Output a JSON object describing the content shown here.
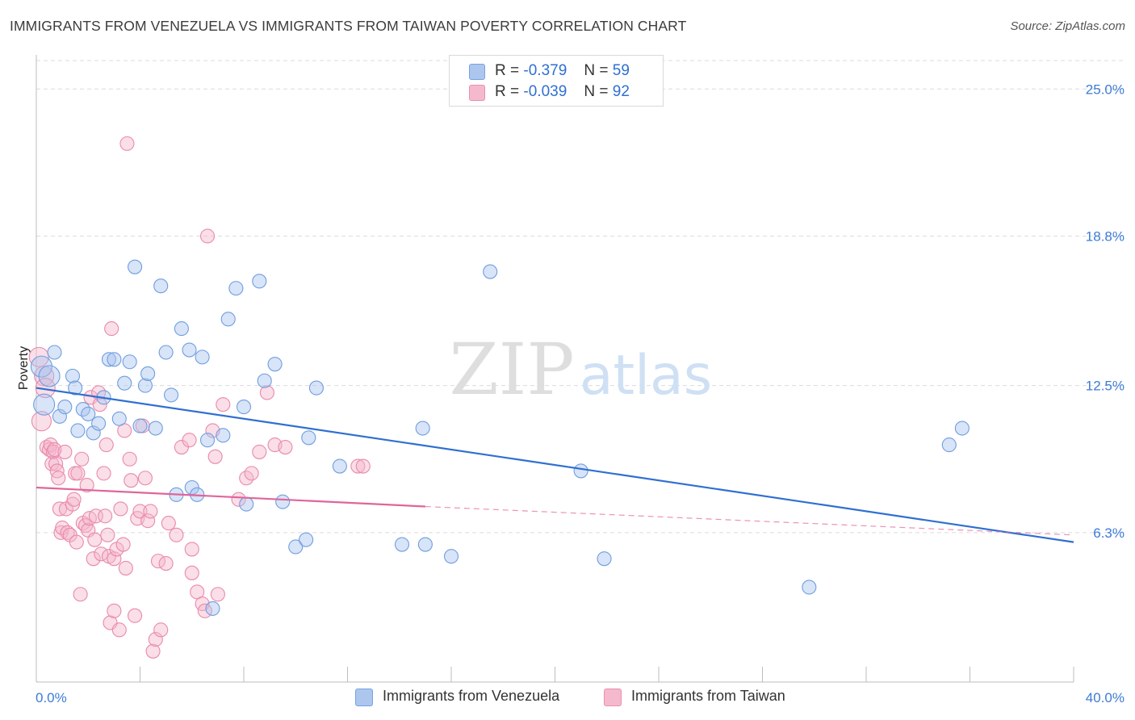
{
  "header": {
    "title": "IMMIGRANTS FROM VENEZUELA VS IMMIGRANTS FROM TAIWAN POVERTY CORRELATION CHART",
    "source": "Source: ZipAtlas.com"
  },
  "watermark": {
    "zip": "ZIP",
    "atlas": "atlas"
  },
  "legend": {
    "venezuela": {
      "r_label": "R =",
      "r_value": "-0.379",
      "n_label": "N =",
      "n_value": "59",
      "color": "#a9c4ee"
    },
    "taiwan": {
      "r_label": "R =",
      "r_value": "-0.039",
      "n_label": "N =",
      "n_value": "92",
      "color": "#f5b6cb"
    }
  },
  "bottom_legend": {
    "venezuela": "Immigrants from Venezuela",
    "taiwan": "Immigrants from Taiwan"
  },
  "chart_data": {
    "type": "scatter",
    "ylabel": "Poverty",
    "xlim": [
      0,
      40
    ],
    "ylim": [
      0,
      26.2
    ],
    "x_tick_labels": {
      "left": "0.0%",
      "right": "40.0%"
    },
    "y_ticks": [
      {
        "value": 6.3,
        "label": "6.3%"
      },
      {
        "value": 12.5,
        "label": "12.5%"
      },
      {
        "value": 18.8,
        "label": "18.8%"
      },
      {
        "value": 25.0,
        "label": "25.0%"
      }
    ],
    "grid": true,
    "series": [
      {
        "name": "Immigrants from Venezuela",
        "color": "#a9c4ee",
        "edge": "#6f9ee0",
        "trend_color": "#2f6fd1",
        "trend": {
          "x0": 0.0,
          "y0": 12.4,
          "x1": 40.0,
          "y1": 5.9
        },
        "points": [
          [
            0.2,
            13.3
          ],
          [
            0.3,
            11.7
          ],
          [
            0.5,
            12.9
          ],
          [
            0.7,
            13.9
          ],
          [
            0.9,
            11.2
          ],
          [
            1.1,
            11.6
          ],
          [
            1.4,
            12.9
          ],
          [
            1.5,
            12.4
          ],
          [
            1.6,
            10.6
          ],
          [
            1.8,
            11.5
          ],
          [
            2.0,
            11.3
          ],
          [
            2.2,
            10.5
          ],
          [
            2.4,
            10.9
          ],
          [
            2.6,
            12.0
          ],
          [
            2.8,
            13.6
          ],
          [
            3.0,
            13.6
          ],
          [
            3.2,
            11.1
          ],
          [
            3.4,
            12.6
          ],
          [
            3.6,
            13.5
          ],
          [
            3.8,
            17.5
          ],
          [
            4.0,
            10.8
          ],
          [
            4.2,
            12.5
          ],
          [
            4.3,
            13.0
          ],
          [
            4.6,
            10.7
          ],
          [
            4.8,
            16.7
          ],
          [
            5.0,
            13.9
          ],
          [
            5.2,
            12.1
          ],
          [
            5.4,
            7.9
          ],
          [
            5.6,
            14.9
          ],
          [
            5.9,
            14.0
          ],
          [
            6.0,
            8.2
          ],
          [
            6.2,
            7.9
          ],
          [
            6.4,
            13.7
          ],
          [
            6.6,
            10.2
          ],
          [
            6.8,
            3.1
          ],
          [
            7.2,
            10.4
          ],
          [
            7.4,
            15.3
          ],
          [
            7.7,
            16.6
          ],
          [
            8.0,
            11.6
          ],
          [
            8.1,
            7.5
          ],
          [
            8.6,
            16.9
          ],
          [
            8.8,
            12.7
          ],
          [
            9.2,
            13.4
          ],
          [
            9.5,
            7.6
          ],
          [
            10.0,
            5.7
          ],
          [
            10.4,
            6.0
          ],
          [
            10.5,
            10.3
          ],
          [
            10.8,
            12.4
          ],
          [
            11.7,
            9.1
          ],
          [
            14.1,
            5.8
          ],
          [
            14.9,
            10.7
          ],
          [
            15.0,
            5.8
          ],
          [
            16.0,
            5.3
          ],
          [
            17.5,
            17.3
          ],
          [
            21.0,
            8.9
          ],
          [
            21.9,
            5.2
          ],
          [
            29.8,
            4.0
          ],
          [
            35.2,
            10.0
          ],
          [
            35.7,
            10.7
          ]
        ]
      },
      {
        "name": "Immigrants from Taiwan",
        "color": "#f5b6cb",
        "edge": "#e98aab",
        "trend_color": "#e0659a",
        "trend": {
          "x0": 0.0,
          "y0": 8.2,
          "x1": 15.0,
          "y1": 7.4
        },
        "trend_dashed": {
          "x0": 15.0,
          "y0": 7.4,
          "x1": 40.0,
          "y1": 6.2
        },
        "points": [
          [
            0.1,
            13.7
          ],
          [
            0.2,
            11.0
          ],
          [
            0.3,
            12.9
          ],
          [
            0.35,
            12.4
          ],
          [
            0.4,
            9.9
          ],
          [
            0.5,
            9.8
          ],
          [
            0.55,
            10.0
          ],
          [
            0.6,
            9.2
          ],
          [
            0.65,
            9.7
          ],
          [
            0.7,
            9.8
          ],
          [
            0.75,
            9.2
          ],
          [
            0.8,
            8.9
          ],
          [
            0.85,
            8.6
          ],
          [
            0.9,
            7.3
          ],
          [
            0.95,
            6.3
          ],
          [
            1.0,
            6.5
          ],
          [
            1.1,
            9.7
          ],
          [
            1.15,
            7.3
          ],
          [
            1.2,
            6.3
          ],
          [
            1.3,
            6.2
          ],
          [
            1.4,
            7.5
          ],
          [
            1.45,
            7.7
          ],
          [
            1.5,
            8.8
          ],
          [
            1.55,
            5.9
          ],
          [
            1.6,
            8.8
          ],
          [
            1.7,
            3.7
          ],
          [
            1.75,
            9.4
          ],
          [
            1.8,
            6.7
          ],
          [
            1.9,
            6.6
          ],
          [
            1.95,
            8.3
          ],
          [
            2.0,
            6.4
          ],
          [
            2.05,
            6.9
          ],
          [
            2.1,
            12.0
          ],
          [
            2.2,
            5.2
          ],
          [
            2.25,
            6.0
          ],
          [
            2.3,
            7.0
          ],
          [
            2.4,
            12.2
          ],
          [
            2.45,
            11.7
          ],
          [
            2.5,
            5.4
          ],
          [
            2.6,
            8.8
          ],
          [
            2.65,
            7.0
          ],
          [
            2.7,
            10.0
          ],
          [
            2.75,
            6.2
          ],
          [
            2.8,
            5.3
          ],
          [
            2.85,
            2.5
          ],
          [
            2.9,
            14.9
          ],
          [
            3.0,
            5.2
          ],
          [
            3.1,
            5.6
          ],
          [
            3.2,
            2.2
          ],
          [
            3.25,
            7.3
          ],
          [
            3.35,
            5.8
          ],
          [
            3.4,
            10.6
          ],
          [
            3.45,
            4.8
          ],
          [
            3.5,
            22.7
          ],
          [
            3.6,
            9.4
          ],
          [
            3.65,
            8.5
          ],
          [
            3.8,
            2.8
          ],
          [
            3.9,
            6.9
          ],
          [
            4.0,
            7.2
          ],
          [
            4.1,
            10.8
          ],
          [
            4.2,
            8.6
          ],
          [
            4.3,
            6.8
          ],
          [
            4.4,
            7.2
          ],
          [
            4.5,
            1.3
          ],
          [
            4.6,
            1.8
          ],
          [
            4.7,
            5.1
          ],
          [
            4.8,
            2.2
          ],
          [
            5.1,
            6.7
          ],
          [
            5.4,
            6.2
          ],
          [
            5.6,
            9.9
          ],
          [
            5.9,
            10.2
          ],
          [
            6.0,
            5.6
          ],
          [
            6.2,
            3.8
          ],
          [
            6.4,
            3.3
          ],
          [
            6.6,
            18.8
          ],
          [
            6.8,
            10.6
          ],
          [
            6.9,
            9.5
          ],
          [
            7.0,
            3.7
          ],
          [
            7.2,
            11.7
          ],
          [
            7.8,
            7.7
          ],
          [
            8.1,
            8.6
          ],
          [
            8.6,
            9.7
          ],
          [
            8.9,
            12.2
          ],
          [
            9.2,
            10.0
          ],
          [
            9.6,
            9.9
          ],
          [
            12.4,
            9.1
          ],
          [
            12.6,
            9.1
          ],
          [
            3.0,
            3.0
          ],
          [
            6.0,
            4.6
          ],
          [
            5.0,
            5.0
          ],
          [
            8.3,
            8.8
          ],
          [
            6.5,
            3.0
          ]
        ]
      }
    ]
  }
}
